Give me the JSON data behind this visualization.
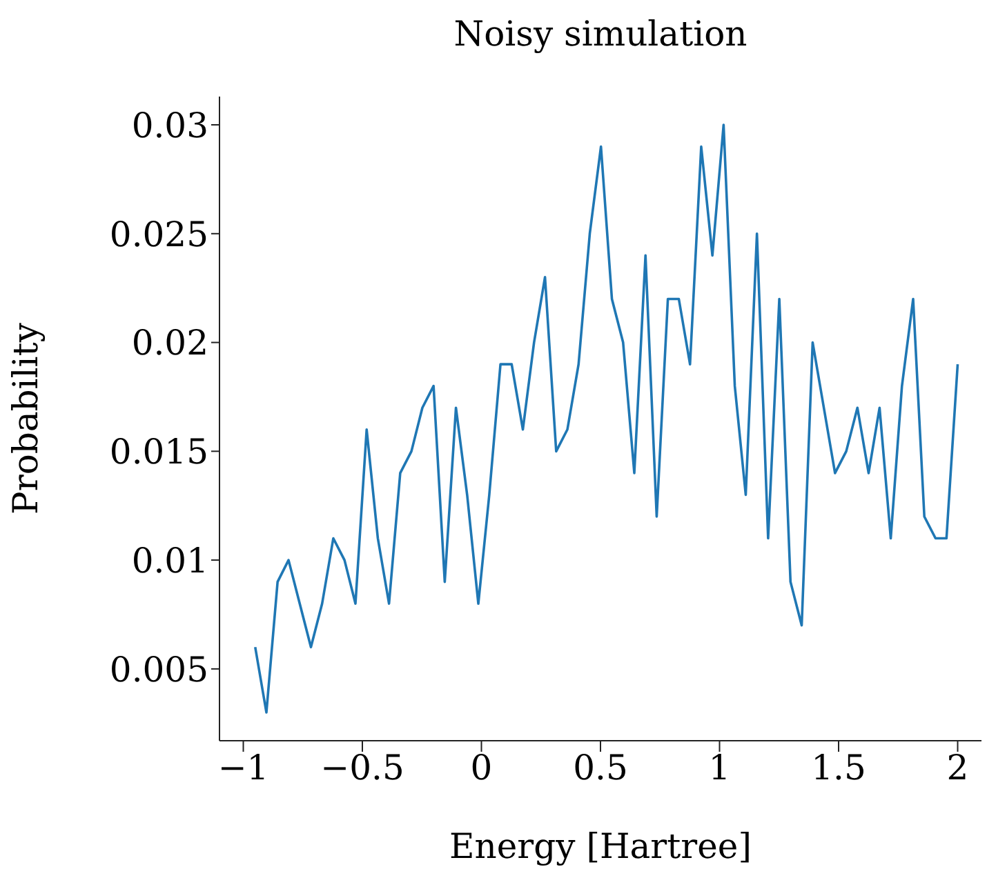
{
  "chart_data": {
    "type": "line",
    "title": "Noisy simulation",
    "xlabel": "Energy [Hartree]",
    "ylabel": "Probability",
    "x": [
      -0.95,
      -0.903,
      -0.856,
      -0.81,
      -0.763,
      -0.716,
      -0.669,
      -0.622,
      -0.575,
      -0.529,
      -0.482,
      -0.435,
      -0.388,
      -0.341,
      -0.294,
      -0.248,
      -0.201,
      -0.154,
      -0.107,
      -0.06,
      -0.013,
      0.033,
      0.08,
      0.127,
      0.174,
      0.221,
      0.267,
      0.314,
      0.361,
      0.408,
      0.455,
      0.502,
      0.548,
      0.595,
      0.642,
      0.689,
      0.736,
      0.783,
      0.829,
      0.876,
      0.923,
      0.97,
      1.017,
      1.064,
      1.11,
      1.157,
      1.204,
      1.251,
      1.298,
      1.345,
      1.391,
      1.438,
      1.485,
      1.532,
      1.579,
      1.626,
      1.672,
      1.719,
      1.766,
      1.813,
      1.86,
      1.907,
      1.953,
      2.0
    ],
    "series": [
      {
        "color": "#1f77b4",
        "values": [
          0.006,
          0.003,
          0.009,
          0.01,
          0.008,
          0.006,
          0.008,
          0.011,
          0.01,
          0.008,
          0.016,
          0.011,
          0.008,
          0.014,
          0.015,
          0.017,
          0.018,
          0.009,
          0.017,
          0.013,
          0.008,
          0.013,
          0.019,
          0.019,
          0.016,
          0.02,
          0.023,
          0.015,
          0.016,
          0.019,
          0.025,
          0.029,
          0.022,
          0.02,
          0.014,
          0.024,
          0.012,
          0.022,
          0.022,
          0.019,
          0.029,
          0.024,
          0.03,
          0.018,
          0.013,
          0.025,
          0.011,
          0.022,
          0.009,
          0.007,
          0.02,
          0.017,
          0.014,
          0.015,
          0.017,
          0.014,
          0.017,
          0.011,
          0.018,
          0.022,
          0.012,
          0.011,
          0.011,
          0.019
        ]
      }
    ],
    "xlim": [
      -1.1,
      2.1
    ],
    "ylim": [
      0.0017,
      0.0313
    ],
    "xticks": [
      {
        "value": -1,
        "label": "−1"
      },
      {
        "value": -0.5,
        "label": "−0.5"
      },
      0,
      0.5,
      1,
      1.5,
      2
    ],
    "yticks": [
      0.005,
      0.01,
      0.015,
      0.02,
      0.025,
      0.03
    ],
    "grid": false,
    "legend": false,
    "marker": "none",
    "line_style": "solid"
  }
}
